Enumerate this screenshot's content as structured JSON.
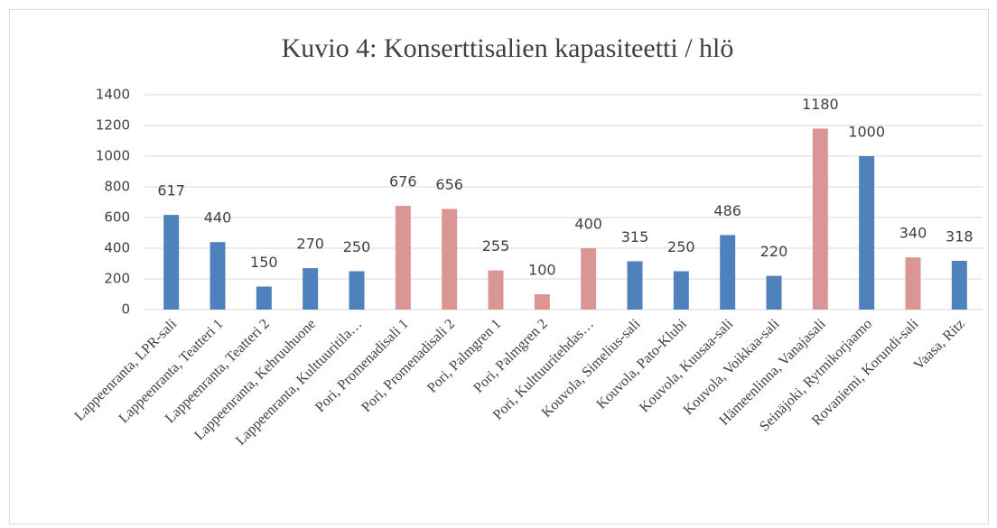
{
  "chart_data": {
    "type": "bar",
    "title": "Kuvio 4: Konserttisalien kapasiteetti / hlö",
    "categories": [
      "Lappeenranta, LPR-sali",
      "Lappeenranta, Teatteri 1",
      "Lappeenranta, Teatteri 2",
      "Lappeenranta, Kehruuhuone",
      "Lappeenranta, Kulttuuritila…",
      "Pori, Promenadisali 1",
      "Pori, Promenadisali 2",
      "Pori, Palmgren 1",
      "Pori, Palmgren 2",
      "Pori, Kulttuuritehdas…",
      "Kouvola, Simelius-sali",
      "Kouvola, Pato-Klubi",
      "Kouvola, Kuusaa-sali",
      "Kouvola, Voikkaa-sali",
      "Hämeenlinna, Vanajasali",
      "Seinäjoki, Rytmikorjaamo",
      "Rovaniemi, Korundi-sali",
      "Vaasa, Ritz"
    ],
    "values": [
      617,
      440,
      150,
      270,
      250,
      676,
      656,
      255,
      100,
      400,
      315,
      250,
      486,
      220,
      1180,
      1000,
      340,
      318
    ],
    "colors": [
      "#4f81bd",
      "#4f81bd",
      "#4f81bd",
      "#4f81bd",
      "#4f81bd",
      "#d99694",
      "#d99694",
      "#d99694",
      "#d99694",
      "#d99694",
      "#4f81bd",
      "#4f81bd",
      "#4f81bd",
      "#4f81bd",
      "#d99694",
      "#4f81bd",
      "#d99694",
      "#4f81bd"
    ],
    "ylim": [
      0,
      1400
    ],
    "yticks": [
      0,
      200,
      400,
      600,
      800,
      1000,
      1200,
      1400
    ],
    "grid": true
  }
}
